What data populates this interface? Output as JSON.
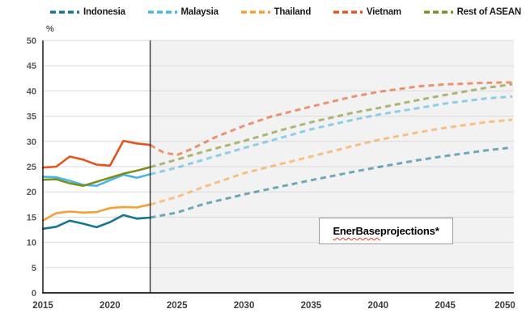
{
  "chart_data": {
    "type": "line",
    "unit_label": "%",
    "ylim": [
      0,
      50
    ],
    "ytick_step": 5,
    "xlim": [
      2015,
      2050
    ],
    "xticks": [
      2015,
      2020,
      2025,
      2030,
      2035,
      2040,
      2045,
      2050
    ],
    "projection_start": 2023,
    "grid": true,
    "legend_position": "top",
    "annotation": {
      "text": "EnerBase projections*",
      "underlined_word": "EnerBase",
      "rest": " projections*"
    },
    "colors": {
      "projection_bg": "#f2f2f2",
      "grid": "#d9d9d9",
      "axis": "#1a1a1a",
      "divider": "#333333",
      "ytick_label": "#595959",
      "xtick_label": "#3d3d3d",
      "spellcheck_underline": "#e03c31"
    },
    "series": [
      {
        "name": "Indonesia",
        "color": "#17768f",
        "history": {
          "x": [
            2015,
            2016,
            2017,
            2018,
            2019,
            2020,
            2021,
            2022,
            2023
          ],
          "y": [
            12.7,
            13.1,
            14.3,
            13.7,
            13.0,
            14.0,
            15.4,
            14.7,
            14.9
          ]
        },
        "projection": {
          "x": [
            2023,
            2025,
            2027,
            2030,
            2033,
            2035,
            2038,
            2040,
            2043,
            2045,
            2048,
            2050
          ],
          "y": [
            14.9,
            15.9,
            17.6,
            19.5,
            21.2,
            22.3,
            23.9,
            24.9,
            26.3,
            27.1,
            28.2,
            28.8
          ]
        }
      },
      {
        "name": "Malaysia",
        "color": "#45b7e0",
        "history": {
          "x": [
            2015,
            2016,
            2017,
            2018,
            2019,
            2020,
            2021,
            2022,
            2023
          ],
          "y": [
            23.0,
            22.9,
            22.2,
            21.4,
            21.2,
            22.3,
            23.4,
            22.8,
            23.5
          ]
        },
        "projection": {
          "x": [
            2023,
            2025,
            2027,
            2030,
            2033,
            2035,
            2038,
            2040,
            2043,
            2045,
            2048,
            2050
          ],
          "y": [
            23.5,
            24.8,
            26.4,
            28.7,
            30.9,
            32.4,
            34.2,
            35.3,
            36.6,
            37.5,
            38.5,
            38.9
          ]
        }
      },
      {
        "name": "Thailand",
        "color": "#f79f35",
        "history": {
          "x": [
            2015,
            2016,
            2017,
            2018,
            2019,
            2020,
            2021,
            2022,
            2023
          ],
          "y": [
            14.3,
            15.8,
            16.1,
            15.9,
            16.0,
            16.8,
            17.0,
            16.9,
            17.5
          ]
        },
        "projection": {
          "x": [
            2023,
            2025,
            2027,
            2030,
            2033,
            2035,
            2038,
            2040,
            2043,
            2045,
            2048,
            2050
          ],
          "y": [
            17.5,
            19.0,
            21.0,
            23.7,
            25.7,
            27.0,
            29.0,
            30.3,
            31.8,
            32.7,
            33.8,
            34.3
          ]
        }
      },
      {
        "name": "Vietnam",
        "color": "#e5531f",
        "history": {
          "x": [
            2015,
            2016,
            2017,
            2018,
            2019,
            2020,
            2021,
            2022,
            2023
          ],
          "y": [
            24.8,
            25.0,
            27.0,
            26.4,
            25.4,
            25.2,
            30.1,
            29.6,
            29.3
          ]
        },
        "projection": {
          "x": [
            2023,
            2024,
            2025,
            2026,
            2028,
            2030,
            2032,
            2035,
            2038,
            2040,
            2043,
            2045,
            2048,
            2050
          ],
          "y": [
            29.3,
            27.8,
            27.3,
            28.4,
            31.0,
            33.1,
            34.9,
            36.9,
            38.8,
            39.8,
            40.9,
            41.3,
            41.6,
            41.7
          ]
        }
      },
      {
        "name": "Rest of ASEAN",
        "color": "#7d8e20",
        "history": {
          "x": [
            2015,
            2016,
            2017,
            2018,
            2019,
            2020,
            2021,
            2022,
            2023
          ],
          "y": [
            22.4,
            22.5,
            21.7,
            21.2,
            22.0,
            22.8,
            23.6,
            24.2,
            24.9
          ]
        },
        "projection": {
          "x": [
            2023,
            2025,
            2027,
            2030,
            2033,
            2035,
            2038,
            2040,
            2043,
            2045,
            2048,
            2050
          ],
          "y": [
            24.9,
            26.4,
            28.0,
            30.1,
            32.4,
            33.8,
            35.6,
            36.6,
            38.2,
            39.2,
            40.6,
            41.3
          ]
        }
      }
    ]
  }
}
